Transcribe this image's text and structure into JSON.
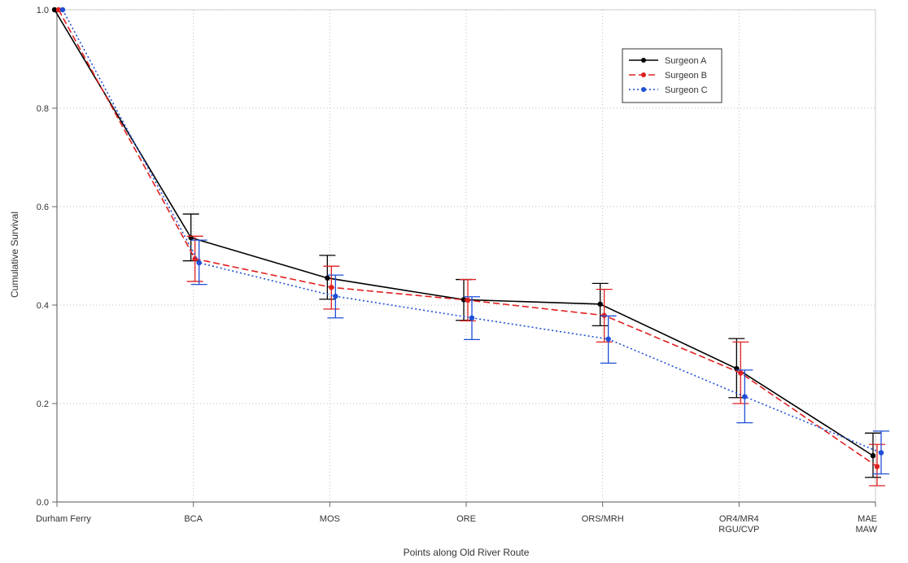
{
  "chart_data": {
    "type": "line",
    "xlabel": "Points along Old River Route",
    "ylabel": "Cumulative Survival",
    "categories": [
      [
        "Durham Ferry"
      ],
      [
        "BCA"
      ],
      [
        "MOS"
      ],
      [
        "ORE"
      ],
      [
        "ORS/MRH"
      ],
      [
        "OR4/MR4",
        "RGU/CVP"
      ],
      [
        "MAE",
        "MAW"
      ]
    ],
    "ylim": [
      0,
      1.0
    ],
    "yticks": [
      "0.0",
      "0.2",
      "0.4",
      "0.6",
      "0.8",
      "1.0"
    ],
    "yticks_values": [
      0,
      0.2,
      0.4,
      0.6,
      0.8,
      1.0
    ],
    "grid": true,
    "legend_position": "top-right",
    "series": [
      {
        "name": "Surgeon A",
        "color": "#000000",
        "line_style": "solid",
        "values": [
          1.0,
          0.537,
          0.455,
          0.411,
          0.402,
          0.271,
          0.094
        ],
        "lower": [
          1.0,
          0.49,
          0.412,
          0.369,
          0.358,
          0.212,
          0.05
        ],
        "upper": [
          1.0,
          0.585,
          0.501,
          0.452,
          0.444,
          0.332,
          0.14
        ]
      },
      {
        "name": "Surgeon B",
        "color": "#e02020",
        "line_style": "dashed",
        "values": [
          1.0,
          0.494,
          0.436,
          0.41,
          0.379,
          0.262,
          0.072
        ],
        "lower": [
          1.0,
          0.448,
          0.392,
          0.368,
          0.325,
          0.2,
          0.033
        ],
        "upper": [
          1.0,
          0.54,
          0.479,
          0.452,
          0.432,
          0.325,
          0.117
        ]
      },
      {
        "name": "Surgeon C",
        "color": "#1f4fd6",
        "line_style": "dotted",
        "values": [
          1.0,
          0.486,
          0.418,
          0.374,
          0.331,
          0.214,
          0.1
        ],
        "lower": [
          1.0,
          0.442,
          0.374,
          0.33,
          0.282,
          0.161,
          0.057
        ],
        "upper": [
          1.0,
          0.532,
          0.461,
          0.417,
          0.378,
          0.268,
          0.144
        ]
      }
    ]
  }
}
